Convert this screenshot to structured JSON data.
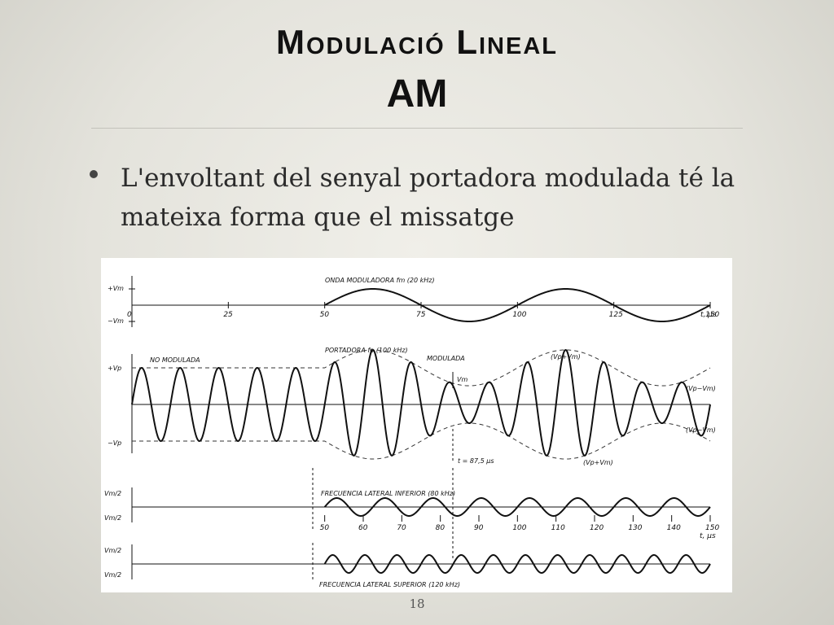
{
  "slide": {
    "title": "Modulació Lineal",
    "subtitle": "AM",
    "bullet": "L'envoltant del senyal portadora modulada té la mateixa forma que el missatge",
    "page_number": "18"
  },
  "figure": {
    "panel1": {
      "label": "ONDA MODULADORA  fm (20 kHz)",
      "y_plus": "+Vm",
      "y_minus": "−Vm",
      "ticks": [
        "0",
        "25",
        "50",
        "75",
        "100",
        "125",
        "150"
      ],
      "axis_unit": "t, μs"
    },
    "panel2": {
      "label_carrier": "PORTADORA  fp (100 kHz)",
      "label_unmodulated": "NO MODULADA",
      "label_modulated": "MODULADA",
      "y_plus": "+Vp",
      "y_minus": "−Vp",
      "vm_marker": "Vm",
      "env_top_max": "(Vp+Vm)",
      "env_top_min": "(Vp−Vm)",
      "env_bottom_min": "(Vp−Vm)",
      "env_bottom_max": "(Vp+Vm)",
      "time_marker": "t = 87,5 μs"
    },
    "panel3": {
      "label": "FRECUENCIA  LATERAL  INFERIOR  (80 kHz)",
      "y_plus": "Vm/2",
      "y_minus": "Vm/2",
      "ticks": [
        "50",
        "60",
        "70",
        "80",
        "90",
        "100",
        "110",
        "120",
        "130",
        "140",
        "150"
      ],
      "axis_unit": "t, μs"
    },
    "panel4": {
      "label": "FRECUENCIA  LATERAL  SUPERIOR  (120 kHz)",
      "y_plus": "Vm/2",
      "y_minus": "Vm/2"
    }
  }
}
